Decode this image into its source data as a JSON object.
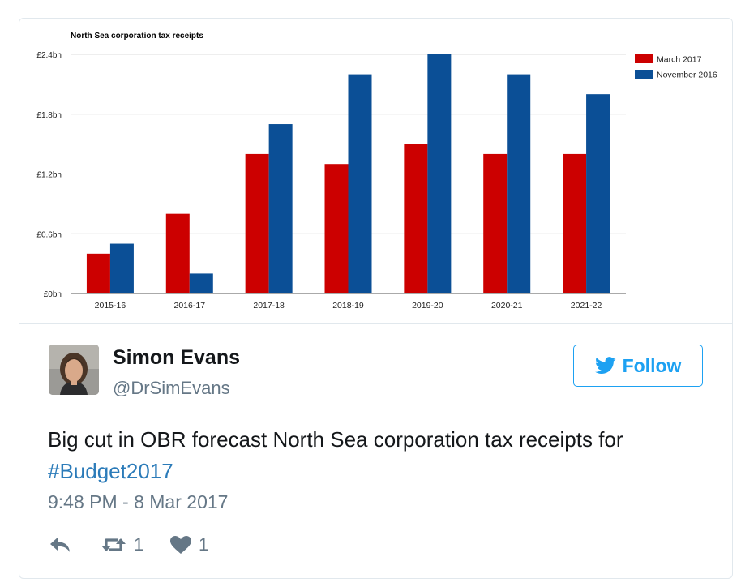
{
  "tweet": {
    "author_name": "Simon Evans",
    "author_handle": "@DrSimEvans",
    "follow_label": "Follow",
    "text_plain": "Big cut in OBR forecast North Sea corporation tax receipts for",
    "hashtag": "#Budget2017",
    "timestamp": "9:48 PM - 8 Mar 2017",
    "retweet_count": "1",
    "like_count": "1",
    "icons": {
      "follow": "twitter-bird-icon",
      "reply": "reply-icon",
      "retweet": "retweet-icon",
      "like": "heart-icon"
    },
    "colors": {
      "brand": "#1da1f2",
      "link": "#2b7bb9",
      "muted": "#657786"
    }
  },
  "chart_data": {
    "type": "bar",
    "title": "North Sea corporation tax receipts",
    "categories": [
      "2015-16",
      "2016-17",
      "2017-18",
      "2018-19",
      "2019-20",
      "2020-21",
      "2021-22"
    ],
    "series": [
      {
        "name": "March 2017",
        "color": "#cc0000",
        "values": [
          0.4,
          0.8,
          1.4,
          1.3,
          1.5,
          1.4,
          1.4
        ]
      },
      {
        "name": "November 2016",
        "color": "#0b4f96",
        "values": [
          0.5,
          0.2,
          1.7,
          2.2,
          2.4,
          2.2,
          2.0
        ]
      }
    ],
    "y_ticks": [
      0,
      0.6,
      1.2,
      1.8,
      2.4
    ],
    "y_tick_labels": [
      "£0bn",
      "£0.6bn",
      "£1.2bn",
      "£1.8bn",
      "£2.4bn"
    ],
    "ylim": [
      0,
      2.4
    ],
    "grid": true,
    "legend_position": "top-right",
    "xlabel": "",
    "ylabel": ""
  }
}
